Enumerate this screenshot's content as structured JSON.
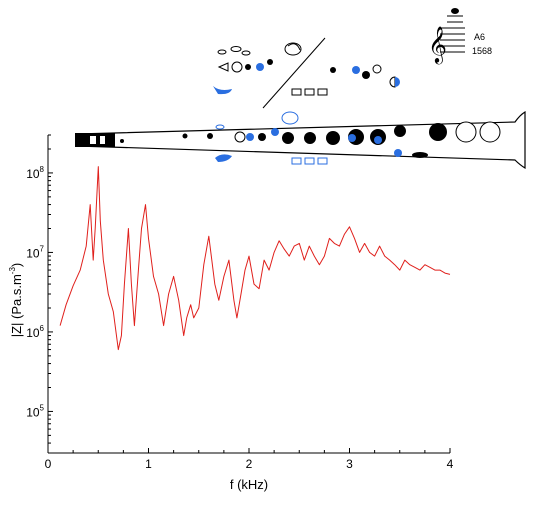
{
  "colors": {
    "curve": "#e0201c",
    "axes": "#000000",
    "key_blue": "#2a6ee0",
    "key_black": "#000000"
  },
  "note": {
    "name": "A6",
    "frequency": "1568"
  },
  "chart_data": {
    "type": "line",
    "xlabel": "f (kHz)",
    "ylabel_main": "|Z| (Pa.s.m",
    "ylabel_sup": "-3",
    "ylabel_close": ")",
    "yscale": "log",
    "xlim": [
      0,
      4
    ],
    "ylim": [
      30000,
      300000000
    ],
    "x_ticks": [
      {
        "value": 0,
        "label": "0"
      },
      {
        "value": 1,
        "label": "1"
      },
      {
        "value": 2,
        "label": "2"
      },
      {
        "value": 3,
        "label": "3"
      },
      {
        "value": 4,
        "label": "4"
      }
    ],
    "y_ticks": [
      {
        "value": 100000,
        "base": "10",
        "exp": "5"
      },
      {
        "value": 1000000,
        "base": "10",
        "exp": "6"
      },
      {
        "value": 10000000,
        "base": "10",
        "exp": "7"
      },
      {
        "value": 100000000,
        "base": "10",
        "exp": "8"
      }
    ],
    "grid": false,
    "series": [
      {
        "x": [
          0.12,
          0.18,
          0.25,
          0.32,
          0.38,
          0.42,
          0.45,
          0.47,
          0.5,
          0.52,
          0.55,
          0.6,
          0.65,
          0.7,
          0.73,
          0.76,
          0.8,
          0.83,
          0.86,
          0.9,
          0.93,
          0.97,
          1.0,
          1.05,
          1.1,
          1.15,
          1.2,
          1.25,
          1.3,
          1.35,
          1.38,
          1.42,
          1.45,
          1.5,
          1.55,
          1.6,
          1.63,
          1.66,
          1.7,
          1.75,
          1.8,
          1.85,
          1.88,
          1.92,
          1.96,
          2.0,
          2.05,
          2.1,
          2.15,
          2.2,
          2.25,
          2.3,
          2.35,
          2.4,
          2.45,
          2.5,
          2.55,
          2.6,
          2.65,
          2.7,
          2.75,
          2.8,
          2.85,
          2.9,
          2.95,
          3.0,
          3.05,
          3.1,
          3.15,
          3.2,
          3.25,
          3.3,
          3.35,
          3.4,
          3.45,
          3.5,
          3.55,
          3.6,
          3.65,
          3.7,
          3.75,
          3.8,
          3.85,
          3.9,
          3.95,
          4.0
        ],
        "y": [
          1200000,
          2200000,
          3800000,
          6000000,
          12000000,
          40000000,
          8000000,
          20000000,
          120000000,
          25000000,
          8000000,
          3000000,
          1800000,
          600000,
          900000,
          4000000,
          20000000,
          4000000,
          1200000,
          6000000,
          20000000,
          40000000,
          15000000,
          5000000,
          3000000,
          1200000,
          3000000,
          5000000,
          2500000,
          900000,
          1500000,
          2200000,
          1500000,
          2000000,
          7000000,
          16000000,
          8000000,
          4000000,
          2500000,
          5000000,
          8000000,
          2500000,
          1500000,
          3000000,
          6000000,
          9000000,
          4000000,
          3500000,
          8000000,
          6000000,
          10000000,
          14000000,
          11000000,
          9000000,
          12000000,
          13000000,
          8000000,
          12000000,
          9000000,
          7000000,
          9000000,
          15000000,
          13000000,
          12000000,
          17000000,
          21000000,
          15000000,
          10000000,
          13000000,
          10000000,
          9000000,
          12000000,
          9000000,
          8000000,
          7000000,
          6000000,
          8000000,
          7000000,
          6500000,
          6000000,
          7000000,
          6500000,
          6000000,
          6000000,
          5500000,
          5300000
        ]
      }
    ]
  }
}
